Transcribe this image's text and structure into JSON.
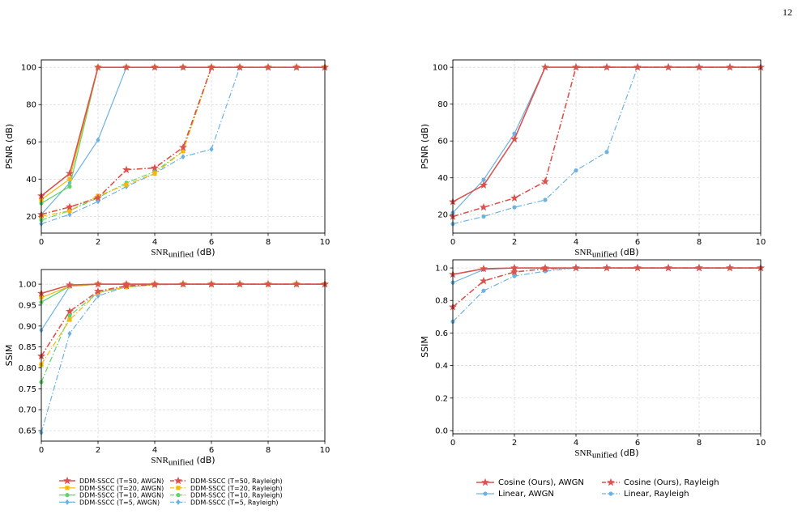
{
  "page_number": "12",
  "colors": {
    "red": "#d9534f",
    "orange": "#f5b80d",
    "green": "#5fd46a",
    "blue": "#6fb2e0"
  },
  "chart_data": [
    {
      "type": "line",
      "panel": "left-top",
      "xlabel_main": "SNR",
      "xlabel_sub": "unified",
      "xlabel_unit": " (dB)",
      "ylabel": "PSNR (dB)",
      "xlim": [
        0,
        10
      ],
      "ylim": [
        11,
        104
      ],
      "xticks": [
        0,
        2,
        4,
        6,
        8,
        10
      ],
      "yticks": [
        20,
        40,
        60,
        80,
        100
      ],
      "grid": true,
      "series": [
        {
          "name": "DDM-SSCC (T=5, AWGN)",
          "color": "#6fb2e0",
          "dash": "solid",
          "marker": "diamond",
          "values": [
            21,
            38,
            61,
            100,
            100,
            100,
            100,
            100,
            100,
            100,
            100
          ]
        },
        {
          "name": "DDM-SSCC (T=5, Rayleigh)",
          "color": "#6fb2e0",
          "dash": "dashdot",
          "marker": "diamond",
          "values": [
            16,
            21,
            28,
            36,
            43,
            52,
            56,
            100,
            100,
            100,
            100
          ]
        },
        {
          "name": "DDM-SSCC (T=10, AWGN)",
          "color": "#5fd46a",
          "dash": "solid",
          "marker": "circle",
          "values": [
            27,
            36,
            100,
            100,
            100,
            100,
            100,
            100,
            100,
            100,
            100
          ]
        },
        {
          "name": "DDM-SSCC (T=10, Rayleigh)",
          "color": "#5fd46a",
          "dash": "dashdot",
          "marker": "circle",
          "values": [
            18,
            23,
            30,
            38,
            44,
            55,
            100,
            100,
            100,
            100,
            100
          ]
        },
        {
          "name": "DDM-SSCC (T=20, AWGN)",
          "color": "#f5b80d",
          "dash": "solid",
          "marker": "square",
          "values": [
            29,
            40,
            100,
            100,
            100,
            100,
            100,
            100,
            100,
            100,
            100
          ]
        },
        {
          "name": "DDM-SSCC (T=20, Rayleigh)",
          "color": "#f5b80d",
          "dash": "dashdot",
          "marker": "square",
          "values": [
            20,
            23,
            31,
            37,
            43,
            55,
            100,
            100,
            100,
            100,
            100
          ]
        },
        {
          "name": "DDM-SSCC (T=50, AWGN)",
          "color": "#d9534f",
          "dash": "solid",
          "marker": "star",
          "values": [
            31,
            43,
            100,
            100,
            100,
            100,
            100,
            100,
            100,
            100,
            100
          ]
        },
        {
          "name": "DDM-SSCC (T=50, Rayleigh)",
          "color": "#d9534f",
          "dash": "dashdot",
          "marker": "star",
          "values": [
            21,
            25,
            30,
            45,
            46,
            57,
            100,
            100,
            100,
            100,
            100
          ]
        }
      ],
      "x": [
        0,
        1,
        2,
        3,
        4,
        5,
        6,
        7,
        8,
        9,
        10
      ]
    },
    {
      "type": "line",
      "panel": "left-bottom",
      "xlabel_main": "SNR",
      "xlabel_sub": "unified",
      "xlabel_unit": " (dB)",
      "ylabel": "SSIM",
      "xlim": [
        0,
        10
      ],
      "ylim": [
        0.625,
        1.035
      ],
      "xticks": [
        0,
        2,
        4,
        6,
        8,
        10
      ],
      "yticks": [
        0.65,
        0.7,
        0.75,
        0.8,
        0.85,
        0.9,
        0.95,
        1.0
      ],
      "ytick_labels": [
        "0.65",
        "0.70",
        "0.75",
        "0.80",
        "0.85",
        "0.90",
        "0.95",
        "1.00"
      ],
      "grid": true,
      "x": [
        0,
        1,
        2,
        3,
        4,
        5,
        6,
        7,
        8,
        9,
        10
      ],
      "series": [
        {
          "name": "DDM-SSCC (T=5, AWGN)",
          "color": "#6fb2e0",
          "dash": "solid",
          "marker": "diamond",
          "values": [
            0.89,
            0.995,
            1.0,
            1.0,
            1.0,
            1.0,
            1.0,
            1.0,
            1.0,
            1.0,
            1.0
          ]
        },
        {
          "name": "DDM-SSCC (T=5, Rayleigh)",
          "color": "#6fb2e0",
          "dash": "dashdot",
          "marker": "diamond",
          "values": [
            0.645,
            0.882,
            0.972,
            0.994,
            0.999,
            1.0,
            1.0,
            1.0,
            1.0,
            1.0,
            1.0
          ]
        },
        {
          "name": "DDM-SSCC (T=10, AWGN)",
          "color": "#5fd46a",
          "dash": "solid",
          "marker": "circle",
          "values": [
            0.957,
            0.995,
            1.0,
            1.0,
            1.0,
            1.0,
            1.0,
            1.0,
            1.0,
            1.0,
            1.0
          ]
        },
        {
          "name": "DDM-SSCC (T=10, Rayleigh)",
          "color": "#5fd46a",
          "dash": "dashdot",
          "marker": "circle",
          "values": [
            0.766,
            0.925,
            0.98,
            0.993,
            0.999,
            1.0,
            1.0,
            1.0,
            1.0,
            1.0,
            1.0
          ]
        },
        {
          "name": "DDM-SSCC (T=20, AWGN)",
          "color": "#f5b80d",
          "dash": "solid",
          "marker": "square",
          "values": [
            0.968,
            0.995,
            1.0,
            1.0,
            1.0,
            1.0,
            1.0,
            1.0,
            1.0,
            1.0,
            1.0
          ]
        },
        {
          "name": "DDM-SSCC (T=20, Rayleigh)",
          "color": "#f5b80d",
          "dash": "dashdot",
          "marker": "square",
          "values": [
            0.808,
            0.915,
            0.98,
            0.993,
            0.999,
            1.0,
            1.0,
            1.0,
            1.0,
            1.0,
            1.0
          ]
        },
        {
          "name": "DDM-SSCC (T=50, AWGN)",
          "color": "#d9534f",
          "dash": "solid",
          "marker": "star",
          "values": [
            0.978,
            0.998,
            1.0,
            1.0,
            1.0,
            1.0,
            1.0,
            1.0,
            1.0,
            1.0,
            1.0
          ]
        },
        {
          "name": "DDM-SSCC (T=50, Rayleigh)",
          "color": "#d9534f",
          "dash": "dashdot",
          "marker": "star",
          "values": [
            0.828,
            0.935,
            0.983,
            0.996,
            0.999,
            1.0,
            1.0,
            1.0,
            1.0,
            1.0,
            1.0
          ]
        }
      ]
    },
    {
      "type": "line",
      "panel": "right-top",
      "xlabel_main": "SNR",
      "xlabel_sub": "unified",
      "xlabel_unit": " (dB)",
      "ylabel": "PSNR (dB)",
      "xlim": [
        0,
        10
      ],
      "ylim": [
        10,
        104
      ],
      "xticks": [
        0,
        2,
        4,
        6,
        8,
        10
      ],
      "yticks": [
        20,
        40,
        60,
        80,
        100
      ],
      "grid": true,
      "x": [
        0,
        1,
        2,
        3,
        4,
        5,
        6,
        7,
        8,
        9,
        10
      ],
      "series": [
        {
          "name": "Linear, AWGN",
          "color": "#6fb2e0",
          "dash": "solid",
          "marker": "circle",
          "values": [
            21,
            39,
            64,
            100,
            100,
            100,
            100,
            100,
            100,
            100,
            100
          ]
        },
        {
          "name": "Linear, Rayleigh",
          "color": "#6fb2e0",
          "dash": "dashdot",
          "marker": "circle",
          "values": [
            15,
            19,
            24,
            28,
            44,
            54,
            100,
            100,
            100,
            100,
            100
          ]
        },
        {
          "name": "Cosine (Ours), AWGN",
          "color": "#d9534f",
          "dash": "solid",
          "marker": "star",
          "values": [
            27,
            36,
            61,
            100,
            100,
            100,
            100,
            100,
            100,
            100,
            100
          ]
        },
        {
          "name": "Cosine (Ours), Rayleigh",
          "color": "#d9534f",
          "dash": "dashdot",
          "marker": "star",
          "values": [
            19,
            24,
            29,
            38,
            100,
            100,
            100,
            100,
            100,
            100,
            100
          ]
        }
      ]
    },
    {
      "type": "line",
      "panel": "right-bottom",
      "xlabel_main": "SNR",
      "xlabel_sub": "unified",
      "xlabel_unit": " (dB)",
      "ylabel": "SSIM",
      "xlim": [
        0,
        10
      ],
      "ylim": [
        -0.02,
        1.05
      ],
      "xticks": [
        0,
        2,
        4,
        6,
        8,
        10
      ],
      "yticks": [
        0.0,
        0.2,
        0.4,
        0.6,
        0.8,
        1.0
      ],
      "ytick_labels": [
        "0.0",
        "0.2",
        "0.4",
        "0.6",
        "0.8",
        "1.0"
      ],
      "grid": true,
      "x": [
        0,
        1,
        2,
        3,
        4,
        5,
        6,
        7,
        8,
        9,
        10
      ],
      "series": [
        {
          "name": "Linear, AWGN",
          "color": "#6fb2e0",
          "dash": "solid",
          "marker": "circle",
          "values": [
            0.91,
            0.99,
            1.0,
            1.0,
            1.0,
            1.0,
            1.0,
            1.0,
            1.0,
            1.0,
            1.0
          ]
        },
        {
          "name": "Linear, Rayleigh",
          "color": "#6fb2e0",
          "dash": "dashdot",
          "marker": "circle",
          "values": [
            0.67,
            0.86,
            0.95,
            0.98,
            1.0,
            1.0,
            1.0,
            1.0,
            1.0,
            1.0,
            1.0
          ]
        },
        {
          "name": "Cosine (Ours), AWGN",
          "color": "#d9534f",
          "dash": "solid",
          "marker": "star",
          "values": [
            0.96,
            0.995,
            1.0,
            1.0,
            1.0,
            1.0,
            1.0,
            1.0,
            1.0,
            1.0,
            1.0
          ]
        },
        {
          "name": "Cosine (Ours), Rayleigh",
          "color": "#d9534f",
          "dash": "dashdot",
          "marker": "star",
          "values": [
            0.76,
            0.92,
            0.975,
            0.995,
            1.0,
            1.0,
            1.0,
            1.0,
            1.0,
            1.0,
            1.0
          ]
        }
      ]
    }
  ],
  "legends": {
    "left": {
      "columns": [
        [
          "DDM-SSCC (T=50, AWGN)",
          "DDM-SSCC (T=20, AWGN)",
          "DDM-SSCC (T=10, AWGN)",
          "DDM-SSCC (T=5, AWGN)"
        ],
        [
          "DDM-SSCC (T=50, Rayleigh)",
          "DDM-SSCC (T=20, Rayleigh)",
          "DDM-SSCC (T=10, Rayleigh)",
          "DDM-SSCC (T=5, Rayleigh)"
        ]
      ]
    },
    "right": {
      "columns": [
        [
          "Cosine (Ours), AWGN",
          "Linear, AWGN"
        ],
        [
          "Cosine (Ours), Rayleigh",
          "Linear, Rayleigh"
        ]
      ]
    }
  }
}
